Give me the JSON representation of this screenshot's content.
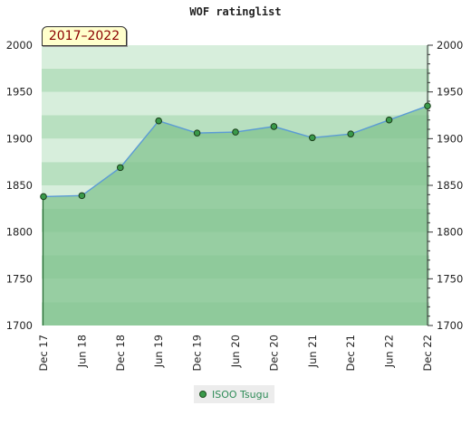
{
  "period_label": "2017–2022",
  "chart_data": {
    "type": "area",
    "title": "WOF ratinglist",
    "xlabel": "",
    "ylabel": "",
    "categories": [
      "Dec 17",
      "Jun 18",
      "Dec 18",
      "Jun 19",
      "Dec 19",
      "Jun 20",
      "Dec 20",
      "Jun 21",
      "Dec 21",
      "Jun 22",
      "Dec 22"
    ],
    "series": [
      {
        "name": "ISOO Tsugu",
        "values": [
          1838,
          1839,
          1869,
          1919,
          1906,
          1907,
          1913,
          1901,
          1905,
          1920,
          1935
        ]
      }
    ],
    "ylim": [
      1700,
      2000
    ],
    "yticks": [
      1700,
      1750,
      1800,
      1850,
      1900,
      1950,
      2000
    ],
    "grid": true,
    "legend_position": "bottom",
    "colors": {
      "line": "#5b9bd5",
      "marker_fill": "#3a9a4a",
      "area": "#82c38f",
      "band_dark": "#8fcc9c",
      "band_light": "#cfe9d4"
    }
  }
}
